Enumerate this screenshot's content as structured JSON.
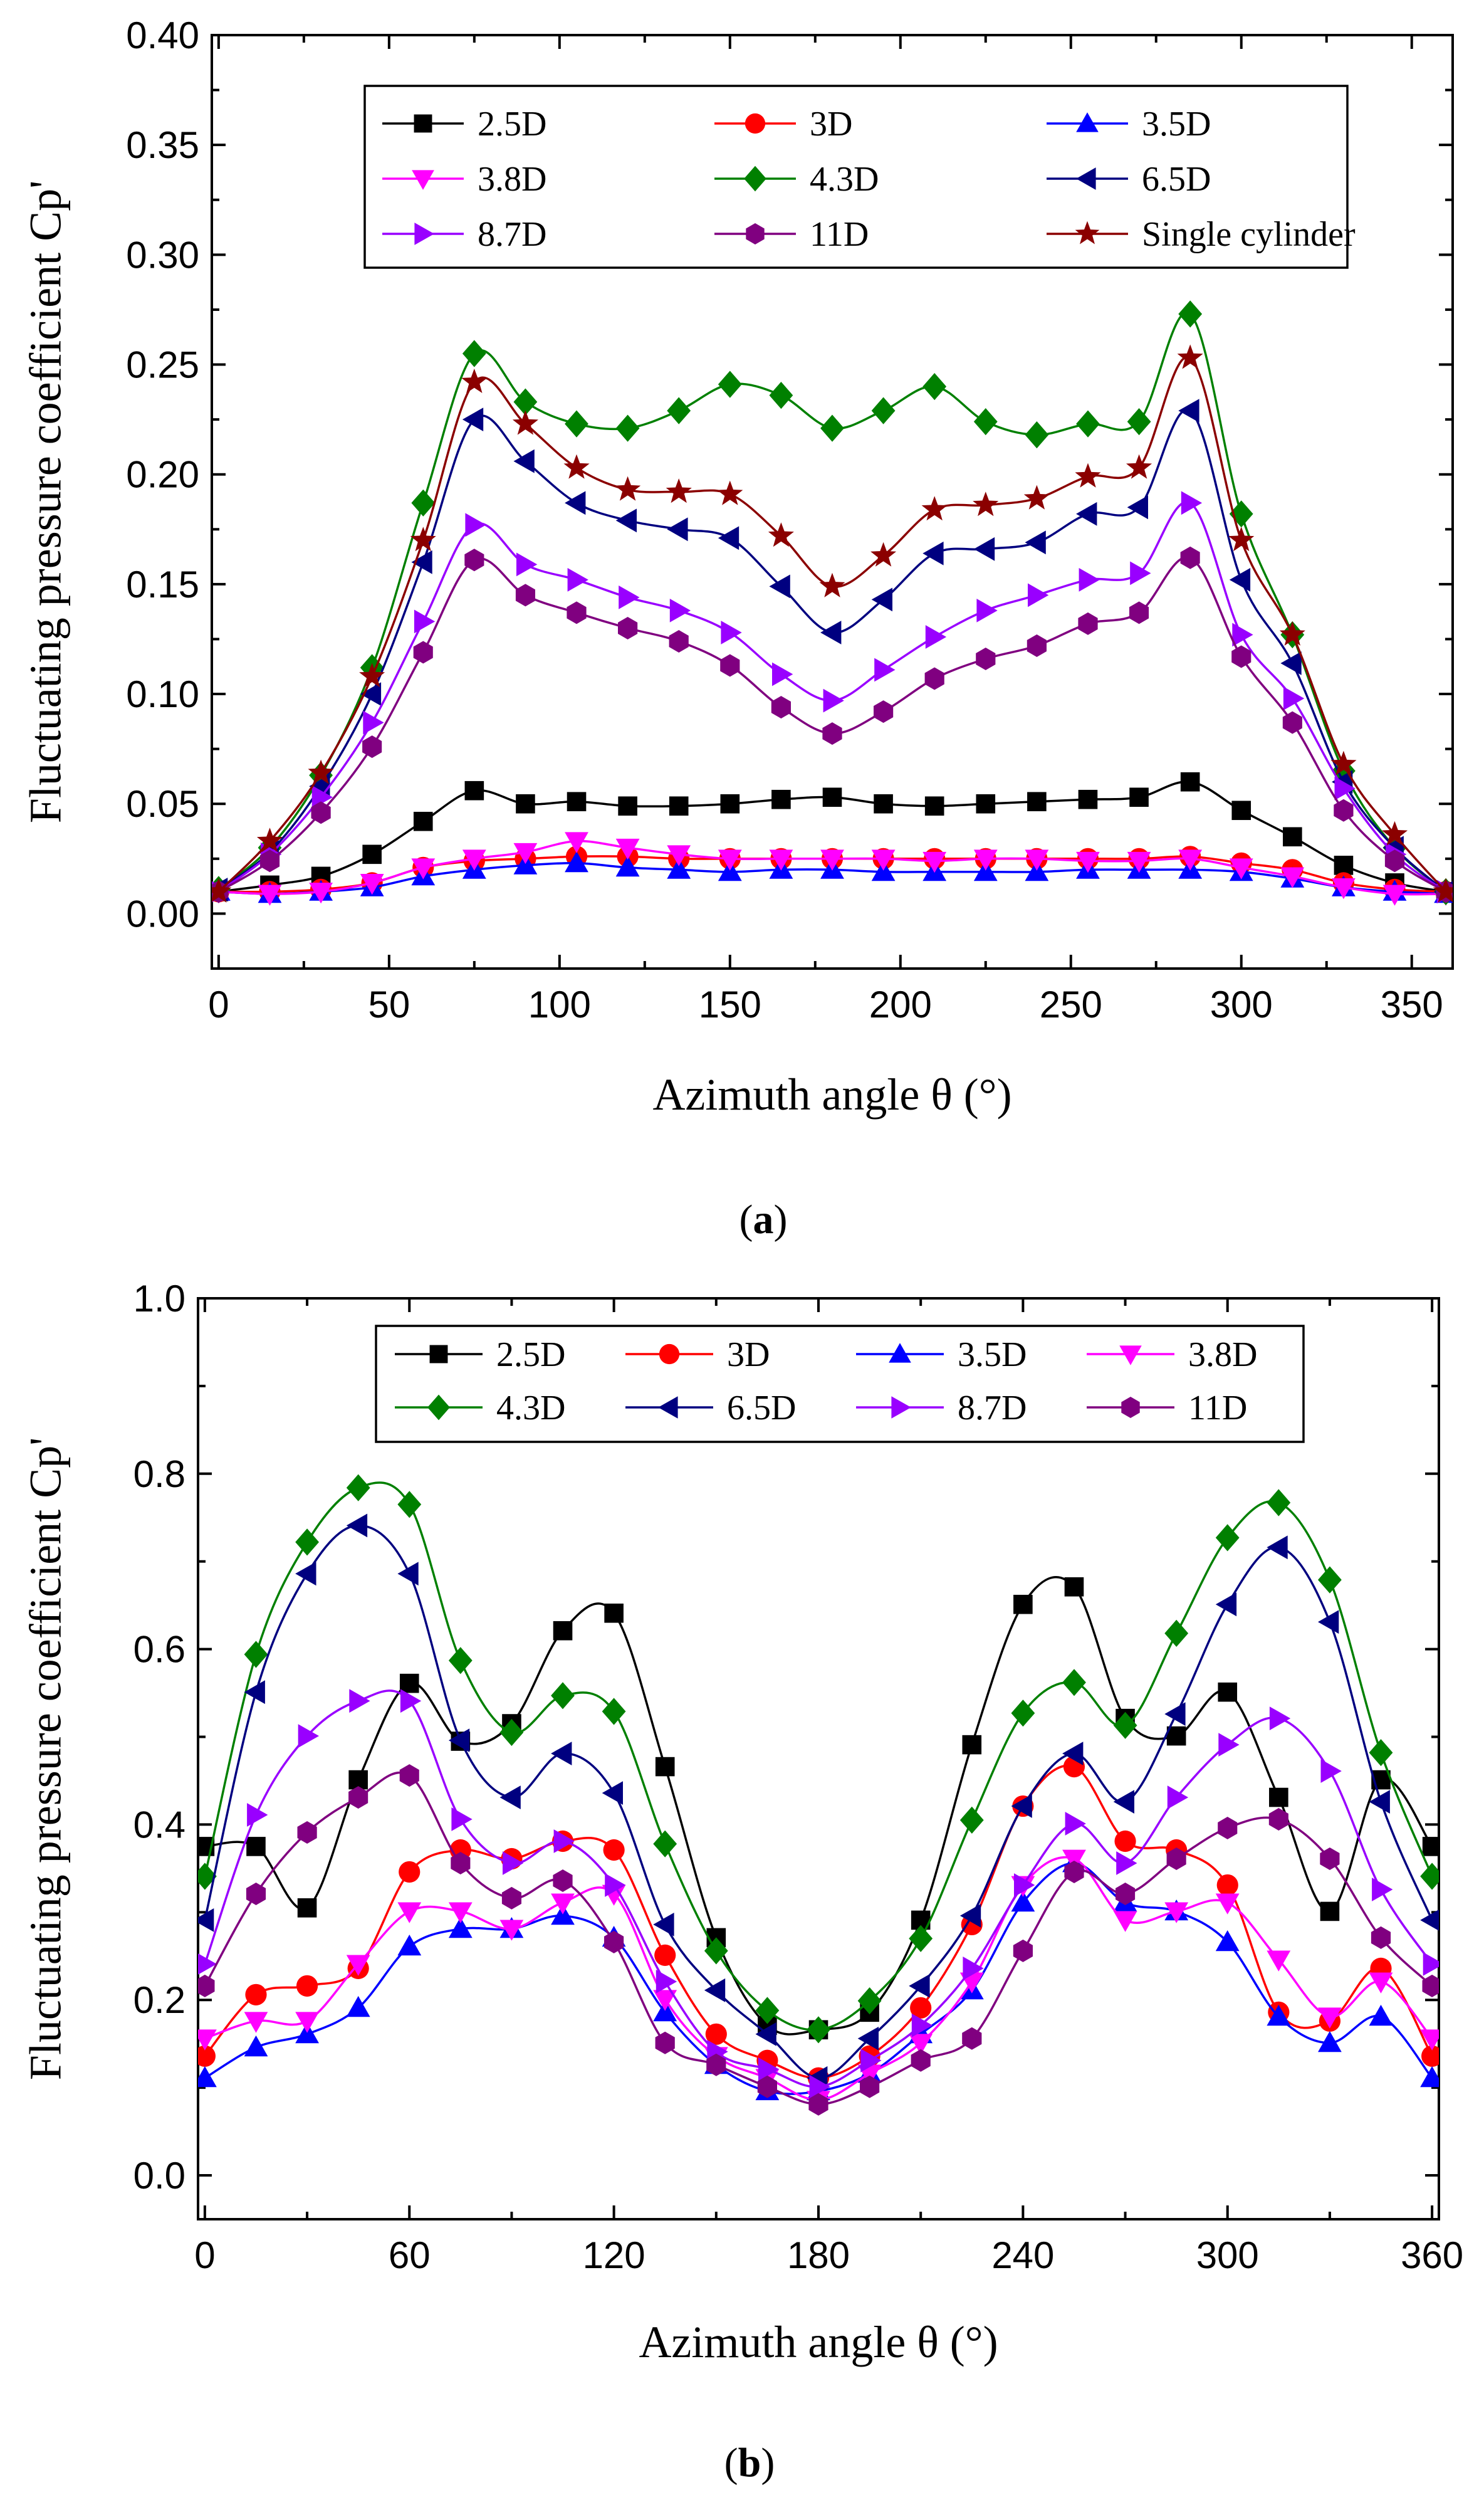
{
  "chart_data": [
    {
      "type": "line",
      "caption_open": "(",
      "caption_letter": "a",
      "caption_close": ")",
      "xlabel": "Azimuth angle θ (°)",
      "ylabel": "Fluctuating pressure coefficient Cp'",
      "xlim": [
        -2,
        362
      ],
      "ylim": [
        -0.025,
        0.4
      ],
      "xticks": [
        0,
        50,
        100,
        150,
        200,
        250,
        300,
        350
      ],
      "yticks": [
        0.0,
        0.05,
        0.1,
        0.15,
        0.2,
        0.25,
        0.3,
        0.35,
        0.4
      ],
      "ytick_labels": [
        "0.00",
        "0.05",
        "0.10",
        "0.15",
        "0.20",
        "0.25",
        "0.30",
        "0.35",
        "0.40"
      ],
      "legend_columns": 3,
      "x": [
        0,
        15,
        30,
        45,
        60,
        75,
        90,
        105,
        120,
        135,
        150,
        165,
        180,
        195,
        210,
        225,
        240,
        255,
        270,
        285,
        300,
        315,
        330,
        345,
        360
      ],
      "series": [
        {
          "name": "2.5D",
          "color": "#000000",
          "marker": "square",
          "values": [
            0.01,
            0.013,
            0.017,
            0.027,
            0.042,
            0.056,
            0.05,
            0.051,
            0.049,
            0.049,
            0.05,
            0.052,
            0.053,
            0.05,
            0.049,
            0.05,
            0.051,
            0.052,
            0.053,
            0.06,
            0.047,
            0.035,
            0.022,
            0.014,
            0.01
          ]
        },
        {
          "name": "3D",
          "color": "#ff0000",
          "marker": "circle",
          "values": [
            0.01,
            0.01,
            0.011,
            0.014,
            0.021,
            0.024,
            0.025,
            0.026,
            0.026,
            0.025,
            0.025,
            0.025,
            0.025,
            0.025,
            0.025,
            0.025,
            0.025,
            0.025,
            0.025,
            0.026,
            0.023,
            0.02,
            0.014,
            0.011,
            0.01
          ]
        },
        {
          "name": "3.5D",
          "color": "#0000ff",
          "marker": "triangle-up",
          "values": [
            0.01,
            0.009,
            0.01,
            0.012,
            0.017,
            0.02,
            0.022,
            0.023,
            0.021,
            0.02,
            0.019,
            0.02,
            0.02,
            0.019,
            0.019,
            0.019,
            0.019,
            0.02,
            0.02,
            0.02,
            0.019,
            0.016,
            0.012,
            0.01,
            0.009
          ]
        },
        {
          "name": "3.8D",
          "color": "#ff00ff",
          "marker": "triangle-down",
          "values": [
            0.01,
            0.009,
            0.01,
            0.014,
            0.021,
            0.025,
            0.028,
            0.033,
            0.03,
            0.027,
            0.025,
            0.025,
            0.025,
            0.025,
            0.024,
            0.025,
            0.025,
            0.024,
            0.024,
            0.025,
            0.021,
            0.017,
            0.012,
            0.009,
            0.009
          ]
        },
        {
          "name": "4.3D",
          "color": "#008000",
          "marker": "diamond",
          "values": [
            0.011,
            0.03,
            0.063,
            0.112,
            0.187,
            0.255,
            0.233,
            0.223,
            0.221,
            0.229,
            0.241,
            0.236,
            0.221,
            0.229,
            0.24,
            0.224,
            0.218,
            0.223,
            0.224,
            0.273,
            0.182,
            0.127,
            0.065,
            0.03,
            0.01
          ]
        },
        {
          "name": "6.5D",
          "color": "#000080",
          "marker": "triangle-left",
          "values": [
            0.011,
            0.028,
            0.058,
            0.1,
            0.16,
            0.225,
            0.206,
            0.187,
            0.179,
            0.175,
            0.171,
            0.149,
            0.128,
            0.143,
            0.164,
            0.166,
            0.169,
            0.182,
            0.185,
            0.229,
            0.152,
            0.114,
            0.06,
            0.03,
            0.01
          ]
        },
        {
          "name": "8.7D",
          "color": "#9900ff",
          "marker": "triangle-right",
          "values": [
            0.01,
            0.027,
            0.053,
            0.087,
            0.133,
            0.177,
            0.159,
            0.152,
            0.144,
            0.138,
            0.128,
            0.109,
            0.097,
            0.111,
            0.126,
            0.138,
            0.145,
            0.152,
            0.155,
            0.187,
            0.127,
            0.098,
            0.057,
            0.027,
            0.01
          ]
        },
        {
          "name": "11D",
          "color": "#800080",
          "marker": "hexagon",
          "values": [
            0.01,
            0.024,
            0.046,
            0.076,
            0.119,
            0.161,
            0.145,
            0.137,
            0.13,
            0.124,
            0.113,
            0.094,
            0.082,
            0.092,
            0.107,
            0.116,
            0.122,
            0.132,
            0.137,
            0.162,
            0.117,
            0.087,
            0.047,
            0.024,
            0.01
          ]
        },
        {
          "name": "Single cylinder",
          "color": "#8b0000",
          "marker": "star",
          "values": [
            0.01,
            0.033,
            0.064,
            0.108,
            0.17,
            0.242,
            0.223,
            0.203,
            0.193,
            0.192,
            0.191,
            0.172,
            0.149,
            0.163,
            0.184,
            0.186,
            0.189,
            0.199,
            0.203,
            0.253,
            0.17,
            0.127,
            0.068,
            0.036,
            0.01
          ]
        }
      ]
    },
    {
      "type": "line",
      "caption_open": "(",
      "caption_letter": "b",
      "caption_close": ")",
      "xlabel": "Azimuth angle θ (°)",
      "ylabel": "Fluctuating pressure coefficient Cp'",
      "xlim": [
        -2,
        362
      ],
      "ylim": [
        -0.05,
        1.0
      ],
      "xticks": [
        0,
        60,
        120,
        180,
        240,
        300,
        360
      ],
      "yticks": [
        0.0,
        0.2,
        0.4,
        0.6,
        0.8,
        1.0
      ],
      "ytick_labels": [
        "0.0",
        "0.2",
        "0.4",
        "0.6",
        "0.8",
        "1.0"
      ],
      "legend_columns": 4,
      "x": [
        0,
        15,
        30,
        45,
        60,
        75,
        90,
        105,
        120,
        135,
        150,
        165,
        180,
        195,
        210,
        225,
        240,
        255,
        270,
        285,
        300,
        315,
        330,
        345,
        360
      ],
      "series": [
        {
          "name": "2.5D",
          "color": "#000000",
          "marker": "square",
          "values": [
            0.375,
            0.375,
            0.305,
            0.451,
            0.561,
            0.495,
            0.515,
            0.621,
            0.641,
            0.466,
            0.271,
            0.171,
            0.166,
            0.186,
            0.291,
            0.491,
            0.651,
            0.671,
            0.521,
            0.501,
            0.551,
            0.431,
            0.301,
            0.451,
            0.375
          ]
        },
        {
          "name": "3D",
          "color": "#ff0000",
          "marker": "circle",
          "values": [
            0.136,
            0.206,
            0.216,
            0.236,
            0.346,
            0.371,
            0.361,
            0.381,
            0.371,
            0.251,
            0.161,
            0.131,
            0.111,
            0.136,
            0.191,
            0.286,
            0.421,
            0.466,
            0.381,
            0.371,
            0.331,
            0.186,
            0.176,
            0.236,
            0.136
          ]
        },
        {
          "name": "3.5D",
          "color": "#0000ff",
          "marker": "triangle-up",
          "values": [
            0.111,
            0.146,
            0.161,
            0.191,
            0.261,
            0.281,
            0.281,
            0.296,
            0.271,
            0.186,
            0.126,
            0.096,
            0.096,
            0.116,
            0.161,
            0.211,
            0.311,
            0.356,
            0.311,
            0.301,
            0.266,
            0.181,
            0.151,
            0.181,
            0.111
          ]
        },
        {
          "name": "3.8D",
          "color": "#ff00ff",
          "marker": "triangle-down",
          "values": [
            0.156,
            0.176,
            0.176,
            0.241,
            0.301,
            0.301,
            0.281,
            0.311,
            0.321,
            0.201,
            0.136,
            0.111,
            0.086,
            0.116,
            0.151,
            0.221,
            0.331,
            0.361,
            0.291,
            0.301,
            0.311,
            0.246,
            0.181,
            0.221,
            0.156
          ]
        },
        {
          "name": "4.3D",
          "color": "#008000",
          "marker": "diamond",
          "values": [
            0.341,
            0.594,
            0.722,
            0.784,
            0.765,
            0.587,
            0.505,
            0.547,
            0.529,
            0.378,
            0.256,
            0.188,
            0.166,
            0.199,
            0.27,
            0.405,
            0.527,
            0.562,
            0.513,
            0.618,
            0.727,
            0.767,
            0.679,
            0.482,
            0.341
          ]
        },
        {
          "name": "6.5D",
          "color": "#000080",
          "marker": "triangle-left",
          "values": [
            0.291,
            0.551,
            0.686,
            0.741,
            0.686,
            0.496,
            0.431,
            0.481,
            0.436,
            0.286,
            0.211,
            0.161,
            0.111,
            0.156,
            0.216,
            0.296,
            0.421,
            0.481,
            0.426,
            0.526,
            0.651,
            0.716,
            0.631,
            0.426,
            0.291
          ]
        },
        {
          "name": "8.7D",
          "color": "#9900ff",
          "marker": "triangle-right",
          "values": [
            0.241,
            0.411,
            0.501,
            0.541,
            0.541,
            0.406,
            0.356,
            0.381,
            0.331,
            0.221,
            0.141,
            0.121,
            0.101,
            0.131,
            0.171,
            0.236,
            0.331,
            0.401,
            0.356,
            0.431,
            0.491,
            0.521,
            0.461,
            0.326,
            0.241
          ]
        },
        {
          "name": "11D",
          "color": "#800080",
          "marker": "hexagon",
          "values": [
            0.216,
            0.321,
            0.391,
            0.431,
            0.456,
            0.356,
            0.316,
            0.336,
            0.266,
            0.151,
            0.126,
            0.101,
            0.081,
            0.101,
            0.131,
            0.156,
            0.256,
            0.346,
            0.321,
            0.361,
            0.396,
            0.406,
            0.361,
            0.271,
            0.216
          ]
        }
      ]
    }
  ]
}
